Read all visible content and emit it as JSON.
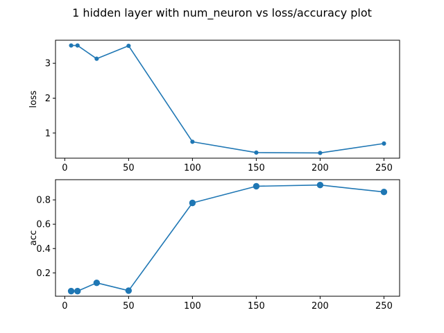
{
  "figure": {
    "suptitle": "1 hidden layer with num_neuron vs loss/accuracy plot"
  },
  "chart_data": [
    {
      "type": "line",
      "x": [
        5,
        10,
        25,
        50,
        100,
        150,
        200,
        250
      ],
      "series": [
        {
          "values": [
            3.51,
            3.51,
            3.13,
            3.5,
            0.75,
            0.44,
            0.43,
            0.7
          ]
        }
      ],
      "xlabel": "",
      "ylabel": "loss",
      "xlim": [
        -7.25,
        262.25
      ],
      "ylim": [
        0.28,
        3.66
      ],
      "xticks": [
        0,
        50,
        100,
        150,
        200,
        250
      ],
      "yticks": [
        1,
        2,
        3
      ],
      "marker": "small-dot",
      "color": "#1f77b4",
      "grid": false
    },
    {
      "type": "line",
      "x": [
        5,
        10,
        25,
        50,
        100,
        150,
        200,
        250
      ],
      "series": [
        {
          "values": [
            0.05,
            0.05,
            0.118,
            0.054,
            0.775,
            0.912,
            0.922,
            0.865
          ]
        }
      ],
      "xlabel": "",
      "ylabel": "acc",
      "xlim": [
        -7.25,
        262.25
      ],
      "ylim": [
        0.008,
        0.966
      ],
      "xticks": [
        0,
        50,
        100,
        150,
        200,
        250
      ],
      "yticks": [
        0.2,
        0.4,
        0.6,
        0.8
      ],
      "marker": "dot",
      "color": "#1f77b4",
      "grid": false
    }
  ]
}
